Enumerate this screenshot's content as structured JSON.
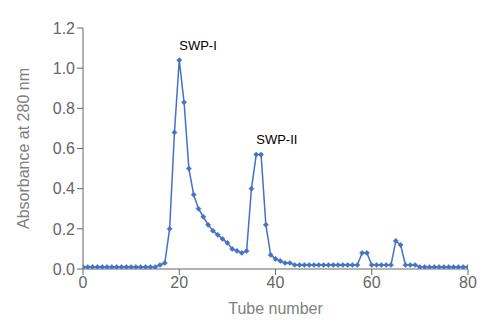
{
  "chart_data": {
    "type": "line",
    "x": [
      0,
      1,
      2,
      3,
      4,
      5,
      6,
      7,
      8,
      9,
      10,
      11,
      12,
      13,
      14,
      15,
      16,
      17,
      18,
      19,
      20,
      21,
      22,
      23,
      24,
      25,
      26,
      27,
      28,
      29,
      30,
      31,
      32,
      33,
      34,
      35,
      36,
      37,
      38,
      39,
      40,
      41,
      42,
      43,
      44,
      45,
      46,
      47,
      48,
      49,
      50,
      51,
      52,
      53,
      54,
      55,
      56,
      57,
      58,
      59,
      60,
      61,
      62,
      63,
      64,
      65,
      66,
      67,
      68,
      69,
      70,
      71,
      72,
      73,
      74,
      75,
      76,
      77,
      78,
      79,
      80
    ],
    "values": [
      0.01,
      0.01,
      0.01,
      0.01,
      0.01,
      0.01,
      0.01,
      0.01,
      0.01,
      0.01,
      0.01,
      0.01,
      0.01,
      0.01,
      0.01,
      0.01,
      0.02,
      0.03,
      0.2,
      0.68,
      1.04,
      0.83,
      0.5,
      0.37,
      0.3,
      0.26,
      0.22,
      0.19,
      0.17,
      0.15,
      0.13,
      0.1,
      0.09,
      0.08,
      0.09,
      0.4,
      0.57,
      0.57,
      0.22,
      0.07,
      0.05,
      0.04,
      0.03,
      0.03,
      0.02,
      0.02,
      0.02,
      0.02,
      0.02,
      0.02,
      0.02,
      0.02,
      0.02,
      0.02,
      0.02,
      0.02,
      0.02,
      0.02,
      0.08,
      0.08,
      0.02,
      0.02,
      0.02,
      0.02,
      0.02,
      0.14,
      0.12,
      0.02,
      0.02,
      0.02,
      0.01,
      0.01,
      0.01,
      0.01,
      0.01,
      0.01,
      0.01,
      0.01,
      0.01,
      0.01,
      0.01
    ],
    "color": "#4472C4",
    "marker": "diamond",
    "xlabel": "Tube number",
    "ylabel": "Absorbance at 280 nm",
    "xlim": [
      0,
      80
    ],
    "ylim": [
      0,
      1.2
    ],
    "xticks": [
      0,
      20,
      40,
      60,
      80
    ],
    "yticks": [
      {
        "value": 0.0,
        "label": "0.0"
      },
      0.2,
      0.4,
      0.6,
      0.8,
      {
        "value": 1.0,
        "label": "1.0"
      },
      1.2
    ],
    "annotations": [
      {
        "text": "SWP-I",
        "x": 20,
        "y": 1.09
      },
      {
        "text": "SWP-II",
        "x": 36,
        "y": 0.62
      }
    ]
  }
}
